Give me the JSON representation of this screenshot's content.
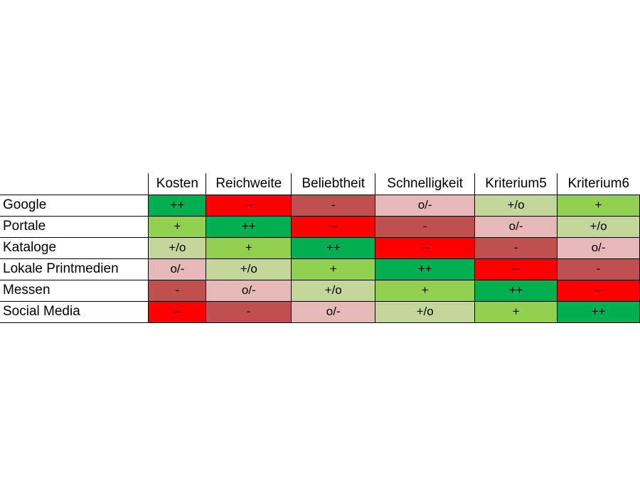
{
  "chart_data": {
    "type": "table",
    "columns": [
      "Kosten",
      "Reichweite",
      "Beliebtheit",
      "Schnelligkeit",
      "Kriterium5",
      "Kriterium6"
    ],
    "rows": [
      {
        "label": "Google",
        "cells": [
          "++",
          "--",
          "-",
          "o/-",
          "+/o",
          "+"
        ]
      },
      {
        "label": "Portale",
        "cells": [
          "+",
          "++",
          "--",
          "-",
          "o/-",
          "+/o"
        ]
      },
      {
        "label": "Kataloge",
        "cells": [
          "+/o",
          "+",
          "++",
          "--",
          "-",
          "o/-"
        ]
      },
      {
        "label": "Lokale Printmedien",
        "cells": [
          "o/-",
          "+/o",
          "+",
          "++",
          "--",
          "-"
        ]
      },
      {
        "label": "Messen",
        "cells": [
          "-",
          "o/-",
          "+/o",
          "+",
          "++",
          "--"
        ]
      },
      {
        "label": "Social Media",
        "cells": [
          "--",
          "-",
          "o/-",
          "+/o",
          "+",
          "++"
        ]
      }
    ],
    "rating_colors": {
      "++": "#00b050",
      "+": "#92d050",
      "+/o": "#c4d79b",
      "o/-": "#e6b8b7",
      "-": "#c0504d",
      "--": "#ff0000"
    }
  }
}
